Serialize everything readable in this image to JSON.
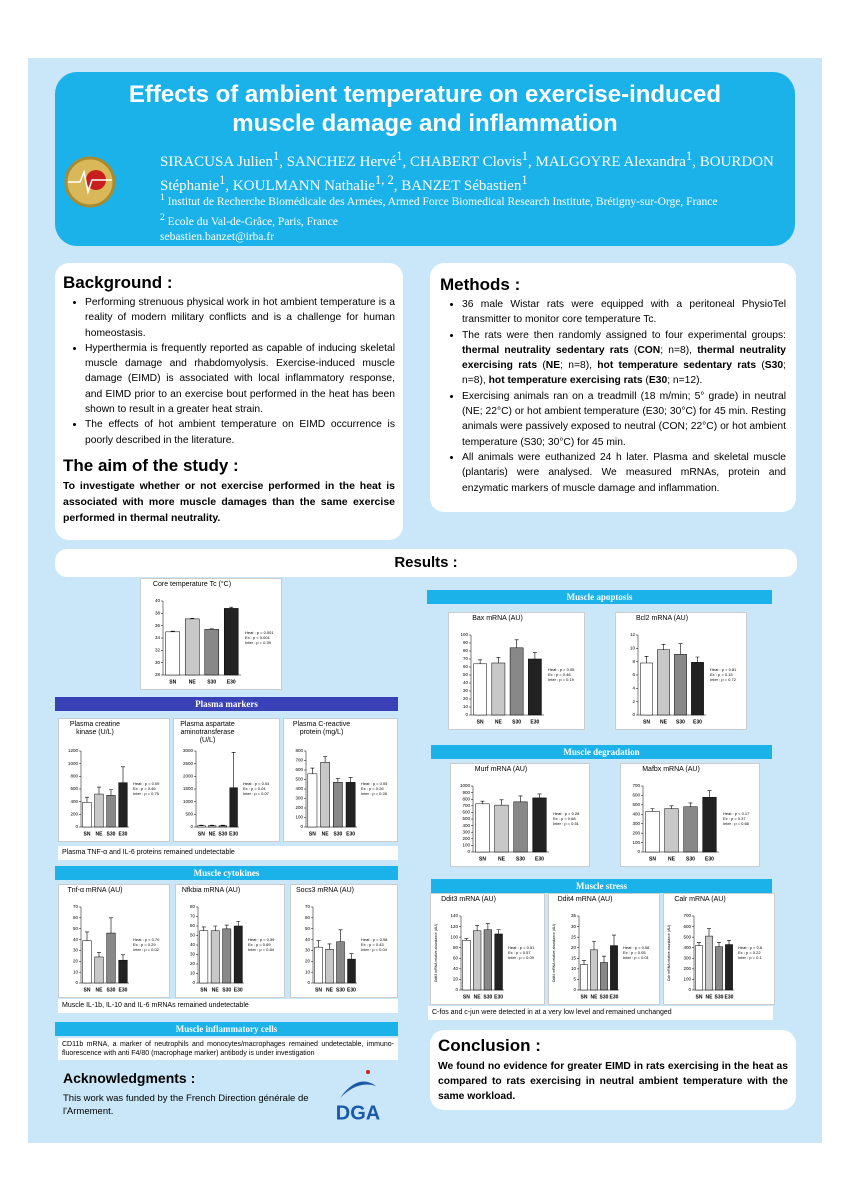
{
  "header": {
    "title": "Effects of ambient temperature on exercise-induced muscle damage and inflammation",
    "authors": [
      {
        "text": "SIRACUSA Julien"
      },
      {
        "text": "1",
        "sup": true
      },
      {
        "text": ", SANCHEZ Hervé"
      },
      {
        "text": "1",
        "sup": true
      },
      {
        "text": ", CHABERT Clovis"
      },
      {
        "text": "1",
        "sup": true
      },
      {
        "text": ", MALGOYRE Alexandra"
      },
      {
        "text": "1",
        "sup": true
      },
      {
        "text": ", BOURDON Stéphanie"
      },
      {
        "text": "1",
        "sup": true
      },
      {
        "text": ", KOULMANN Nathalie"
      },
      {
        "text": "1, 2",
        "sup": true
      },
      {
        "text": ", BANZET Sébastien"
      },
      {
        "text": "1",
        "sup": true
      }
    ],
    "affiliations": [
      [
        {
          "text": "1",
          "sup": true
        },
        {
          "text": " Institut de Recherche Biomédicale des Armées, Armed Force Biomedical Research Institute, Brétigny-sur-Orge, France"
        }
      ],
      [
        {
          "text": "2",
          "sup": true
        },
        {
          "text": " Ecole du Val-de-Grâce, Paris, France"
        }
      ]
    ],
    "email": "sebastien.banzet@irba.fr"
  },
  "background": {
    "title": "Background :",
    "items": [
      "Performing strenuous physical work in hot ambient temperature is a reality of modern military conflicts and is a challenge for human homeostasis.",
      "Hyperthermia is frequently reported as capable of inducing skeletal muscle damage and rhabdomyolysis. Exercise-induced muscle damage (EIMD) is associated with local inflammatory response, and EIMD prior to an exercise bout performed in the heat has been shown to result in a greater heat strain.",
      "The effects of hot ambient temperature on EIMD occurrence is poorly described in the literature."
    ]
  },
  "aim": {
    "title": "The aim of the study :",
    "text": "To investigate whether or not exercise performed in the heat is associated with more muscle damages than the same exercise performed in thermal neutrality."
  },
  "methods": {
    "title": "Methods :",
    "items": [
      [
        {
          "text": "36 male Wistar rats were equipped with a peritoneal PhysioTel transmitter to monitor core temperature Tc."
        }
      ],
      [
        {
          "text": "The rats were then randomly assigned to four experimental groups: "
        },
        {
          "text": "thermal neutrality sedentary rats",
          "bold": true
        },
        {
          "text": " ("
        },
        {
          "text": "CON",
          "bold": true
        },
        {
          "text": "; n=8), "
        },
        {
          "text": "thermal neutrality exercising rats",
          "bold": true
        },
        {
          "text": " ("
        },
        {
          "text": "NE",
          "bold": true
        },
        {
          "text": "; n=8), "
        },
        {
          "text": "hot temperature sedentary rats",
          "bold": true
        },
        {
          "text": " ("
        },
        {
          "text": "S30",
          "bold": true
        },
        {
          "text": "; n=8), "
        },
        {
          "text": "hot temperature exercising rats",
          "bold": true
        },
        {
          "text": " ("
        },
        {
          "text": "E30",
          "bold": true
        },
        {
          "text": "; n=12)."
        }
      ],
      [
        {
          "text": " Exercising animals ran on a treadmill (18 m/min; 5° grade) in neutral (NE; 22°C) or hot ambient temperature (E30; 30°C) for 45 min. Resting animals were passively exposed to neutral (CON; 22°C) or hot ambient temperature (S30; 30°C) for 45 min."
        }
      ],
      [
        {
          "text": "All animals were euthanized 24 h later. Plasma and skeletal muscle (plantaris) were analysed. We measured mRNAs, protein and enzymatic markers of muscle damage and inflammation."
        }
      ]
    ]
  },
  "results_title": "Results :",
  "sections": {
    "plasma_markers": "Plasma markers",
    "muscle_cytokines": "Muscle cytokines",
    "muscle_inflammatory_cells": "Muscle inflammatory cells",
    "muscle_apoptosis": "Muscle apoptosis",
    "muscle_degradation": "Muscle degradation",
    "muscle_stress": "Muscle stress"
  },
  "notes": {
    "plasma": "Plasma TNF-α and IL-6 proteins remained undetectable",
    "cytokines": "Muscle IL-1b, IL-10 and IL-6 mRNAs remained undetectable",
    "cells": "CD11b mRNA, a marker of neutrophils and monocytes/macrophages remained undetectable, immuno-fluorescence with anti F4/80 (macrophage marker) antibody is under investigation",
    "stress": "C-fos and c-jun were detected in at a very low level and remained unchanged"
  },
  "acknowledgments": {
    "title": "Acknowledgments :",
    "text": "This work was funded by the French Direction générale de l'Armement.",
    "logo_text": "DGA"
  },
  "conclusion": {
    "title": "Conclusion :",
    "text": "We found no evidence for greater EIMD in rats exercising in the heat as compared to rats exercising in neutral ambient temperature with the same workload."
  },
  "chart_data": [
    {
      "type": "bar",
      "title": "Core temperature Tc (°C)",
      "categories": [
        "SN",
        "NE",
        "S30",
        "E30"
      ],
      "values": [
        35.0,
        37.1,
        35.4,
        38.8
      ],
      "errors": [
        0.1,
        0.1,
        0.1,
        0.2
      ],
      "colors": [
        "#ffffff",
        "#c8c8c8",
        "#888888",
        "#222222"
      ],
      "ylim": [
        28,
        40
      ],
      "yticks": [
        28,
        30,
        32,
        34,
        36,
        38,
        40
      ],
      "stats": [
        "Heat : p = 0.001",
        "Ex : p < 0.001",
        "Inter : p = 0.39"
      ]
    },
    {
      "type": "bar",
      "title": "Plasma creatine kinase (U/L)",
      "categories": [
        "SN",
        "NE",
        "S30",
        "E30"
      ],
      "values": [
        390,
        520,
        500,
        700
      ],
      "errors": [
        80,
        110,
        90,
        250
      ],
      "colors": [
        "#ffffff",
        "#c8c8c8",
        "#888888",
        "#222222"
      ],
      "ylim": [
        0,
        1200
      ],
      "yticks": [
        0,
        200,
        400,
        600,
        800,
        1000,
        1200
      ],
      "stats": [
        "Heat : p = 0.09",
        "Ex : p = 0.46",
        "Inter : p = 0.75"
      ]
    },
    {
      "type": "bar",
      "title": "Plasma aspartate aminotransferase (U/L)",
      "categories": [
        "SN",
        "NE",
        "S30",
        "E30"
      ],
      "values": [
        50,
        50,
        50,
        1550
      ],
      "errors": [
        20,
        20,
        20,
        1400
      ],
      "colors": [
        "#ffffff",
        "#c8c8c8",
        "#888888",
        "#222222"
      ],
      "ylim": [
        0,
        3000
      ],
      "yticks": [
        0,
        500,
        1000,
        1500,
        2000,
        2500,
        3000
      ],
      "stats": [
        "Heat : p = 0.04",
        "Ex : p = 0.04",
        "Inter : p = 0.07"
      ]
    },
    {
      "type": "bar",
      "title": "Plasma C-reactive protein (mg/L)",
      "categories": [
        "SN",
        "NE",
        "S30",
        "E30"
      ],
      "values": [
        560,
        680,
        470,
        470
      ],
      "errors": [
        60,
        60,
        40,
        50
      ],
      "colors": [
        "#ffffff",
        "#c8c8c8",
        "#888888",
        "#222222"
      ],
      "ylim": [
        0,
        800
      ],
      "yticks": [
        0,
        100,
        200,
        300,
        400,
        500,
        600,
        700,
        800
      ],
      "stats": [
        "Heat : p = 0.05",
        "Ex : p = 0.26",
        "Inter : p = 0.28"
      ]
    },
    {
      "type": "bar",
      "title": "Tnf-α mRNA (AU)",
      "categories": [
        "SN",
        "NE",
        "S30",
        "E30"
      ],
      "values": [
        39,
        24,
        46,
        21
      ],
      "errors": [
        8,
        4,
        14,
        5
      ],
      "colors": [
        "#ffffff",
        "#c8c8c8",
        "#888888",
        "#222222"
      ],
      "ylim": [
        0,
        70
      ],
      "yticks": [
        0,
        10,
        20,
        30,
        40,
        50,
        60,
        70
      ],
      "stats": [
        "Heat : p = 0.70",
        "Ex : p = 0.29",
        "Inter : p = 0.02"
      ]
    },
    {
      "type": "bar",
      "title": "Nfkbia mRNA (AU)",
      "categories": [
        "SN",
        "NE",
        "S30",
        "E30"
      ],
      "values": [
        55,
        55,
        57,
        60
      ],
      "errors": [
        4,
        5,
        4,
        5
      ],
      "colors": [
        "#ffffff",
        "#c8c8c8",
        "#888888",
        "#222222"
      ],
      "ylim": [
        0,
        80
      ],
      "yticks": [
        0,
        10,
        20,
        30,
        40,
        50,
        60,
        70,
        80
      ],
      "stats": [
        "Heat : p = 0.39",
        "Ex : p = 0.69",
        "Inter : p = 0.84"
      ]
    },
    {
      "type": "bar",
      "title": "Socs3 mRNA (AU)",
      "categories": [
        "SN",
        "NE",
        "S30",
        "E30"
      ],
      "values": [
        33,
        31,
        38,
        22
      ],
      "errors": [
        6,
        5,
        11,
        5
      ],
      "colors": [
        "#ffffff",
        "#c8c8c8",
        "#888888",
        "#222222"
      ],
      "ylim": [
        0,
        70
      ],
      "yticks": [
        0,
        10,
        20,
        30,
        40,
        50,
        60,
        70
      ],
      "stats": [
        "Heat : p = 0.98",
        "Ex : p = 0.43",
        "Inter : p = 0.04"
      ]
    },
    {
      "type": "bar",
      "title": "Bax mRNA (AU)",
      "categories": [
        "SN",
        "NE",
        "S30",
        "E30"
      ],
      "values": [
        64,
        65,
        84,
        70
      ],
      "errors": [
        5,
        7,
        10,
        8
      ],
      "colors": [
        "#ffffff",
        "#c8c8c8",
        "#888888",
        "#222222"
      ],
      "ylim": [
        0,
        100
      ],
      "yticks": [
        0,
        10,
        20,
        30,
        40,
        50,
        60,
        70,
        80,
        90,
        100
      ],
      "stats": [
        "Heat : p = 0.05",
        "Ex : p = 0.46",
        "Inter : p = 0.19"
      ]
    },
    {
      "type": "bar",
      "title": "Bcl2 mRNA (AU)",
      "categories": [
        "SN",
        "NE",
        "S30",
        "E30"
      ],
      "values": [
        7.8,
        9.8,
        9.1,
        7.9
      ],
      "errors": [
        1,
        0.8,
        1.6,
        0.8
      ],
      "colors": [
        "#ffffff",
        "#c8c8c8",
        "#888888",
        "#222222"
      ],
      "ylim": [
        0,
        12
      ],
      "yticks": [
        0,
        2,
        4,
        6,
        8,
        10,
        12
      ],
      "stats": [
        "Heat : p = 0.81",
        "Ex : p = 0.15",
        "Inter : p = 0.72"
      ]
    },
    {
      "type": "bar",
      "title": "Murf mRNA (AU)",
      "categories": [
        "SN",
        "NE",
        "S30",
        "E30"
      ],
      "values": [
        730,
        710,
        760,
        820
      ],
      "errors": [
        40,
        80,
        90,
        60
      ],
      "colors": [
        "#ffffff",
        "#c8c8c8",
        "#888888",
        "#222222"
      ],
      "ylim": [
        0,
        1000
      ],
      "yticks": [
        0,
        100,
        200,
        300,
        400,
        500,
        600,
        700,
        800,
        900,
        1000
      ],
      "stats": [
        "Heat : p = 0.28",
        "Ex : p = 0.68",
        "Inter : p = 0.51"
      ]
    },
    {
      "type": "bar",
      "title": "Mafbx mRNA (AU)",
      "categories": [
        "SN",
        "NE",
        "S30",
        "E30"
      ],
      "values": [
        430,
        460,
        480,
        580
      ],
      "errors": [
        30,
        30,
        40,
        70
      ],
      "colors": [
        "#ffffff",
        "#c8c8c8",
        "#888888",
        "#222222"
      ],
      "ylim": [
        0,
        700
      ],
      "yticks": [
        0,
        100,
        200,
        300,
        400,
        500,
        600,
        700
      ],
      "stats": [
        "Heat : p = 0.17",
        "Ex : p = 0.37",
        "Inter : p = 0.66"
      ]
    },
    {
      "type": "bar",
      "title": "Ddit3 mRNA (AU)",
      "ylabel": "Ddit3 mRNA relative abundance (AU)",
      "categories": [
        "SN",
        "NE",
        "S30",
        "E30"
      ],
      "values": [
        94,
        112,
        114,
        106
      ],
      "errors": [
        3,
        10,
        12,
        8
      ],
      "colors": [
        "#ffffff",
        "#c8c8c8",
        "#888888",
        "#222222"
      ],
      "ylim": [
        0,
        140
      ],
      "yticks": [
        0,
        20,
        40,
        60,
        80,
        100,
        120,
        140
      ],
      "stats": [
        "Heat : p = 0.51",
        "Ex : p = 0.57",
        "Inter : p = 0.09"
      ]
    },
    {
      "type": "bar",
      "title": "Ddit4 mRNA (AU)",
      "ylabel": "Ddit4 mRNA relative abundance (AU)",
      "categories": [
        "SN",
        "NE",
        "S30",
        "E30"
      ],
      "values": [
        12,
        19,
        13,
        21
      ],
      "errors": [
        2,
        4,
        3,
        5
      ],
      "colors": [
        "#ffffff",
        "#c8c8c8",
        "#888888",
        "#222222"
      ],
      "ylim": [
        0,
        35
      ],
      "yticks": [
        0,
        5,
        10,
        15,
        20,
        25,
        30,
        35
      ],
      "stats": [
        "Heat : p = 0.58",
        "Ex : p = 0.05",
        "Inter : p = 0.01"
      ]
    },
    {
      "type": "bar",
      "title": "Calr mRNA (AU)",
      "ylabel": "Calr mRNA relative abundance (AU)",
      "categories": [
        "SN",
        "NE",
        "S30",
        "E30"
      ],
      "values": [
        420,
        510,
        410,
        430
      ],
      "errors": [
        30,
        70,
        40,
        40
      ],
      "colors": [
        "#ffffff",
        "#c8c8c8",
        "#888888",
        "#222222"
      ],
      "ylim": [
        0,
        700
      ],
      "yticks": [
        0,
        100,
        200,
        300,
        400,
        500,
        600,
        700
      ],
      "stats": [
        "Heat : p = 0.6",
        "Ex : p = 0.22",
        "Inter : p = 0.1"
      ]
    }
  ]
}
